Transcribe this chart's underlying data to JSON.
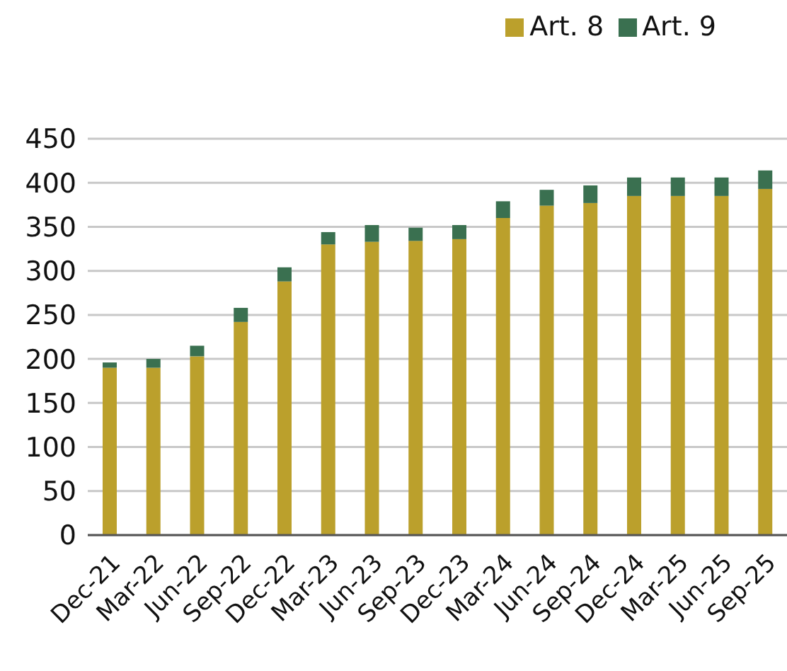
{
  "chart_data": {
    "type": "bar",
    "stacked": true,
    "categories": [
      "Dec-21",
      "Mar-22",
      "Jun-22",
      "Sep-22",
      "Dec-22",
      "Mar-23",
      "Jun-23",
      "Sep-23",
      "Dec-23",
      "Mar-24",
      "Jun-24",
      "Sep-24",
      "Dec-24",
      "Mar-25",
      "Jun-25",
      "Sep-25"
    ],
    "series": [
      {
        "name": "Art. 8",
        "color": "#bba02c",
        "values": [
          190,
          190,
          203,
          242,
          288,
          330,
          333,
          334,
          336,
          360,
          374,
          377,
          385,
          385,
          385,
          393
        ]
      },
      {
        "name": "Art. 9",
        "color": "#3a7050",
        "values": [
          6,
          10,
          12,
          16,
          16,
          14,
          19,
          15,
          16,
          19,
          18,
          20,
          21,
          21,
          21,
          21
        ]
      }
    ],
    "ylim": [
      0,
      450
    ],
    "yticks": [
      0,
      50,
      100,
      150,
      200,
      250,
      300,
      350,
      400,
      450
    ],
    "grid": "y",
    "legend": "top right"
  }
}
